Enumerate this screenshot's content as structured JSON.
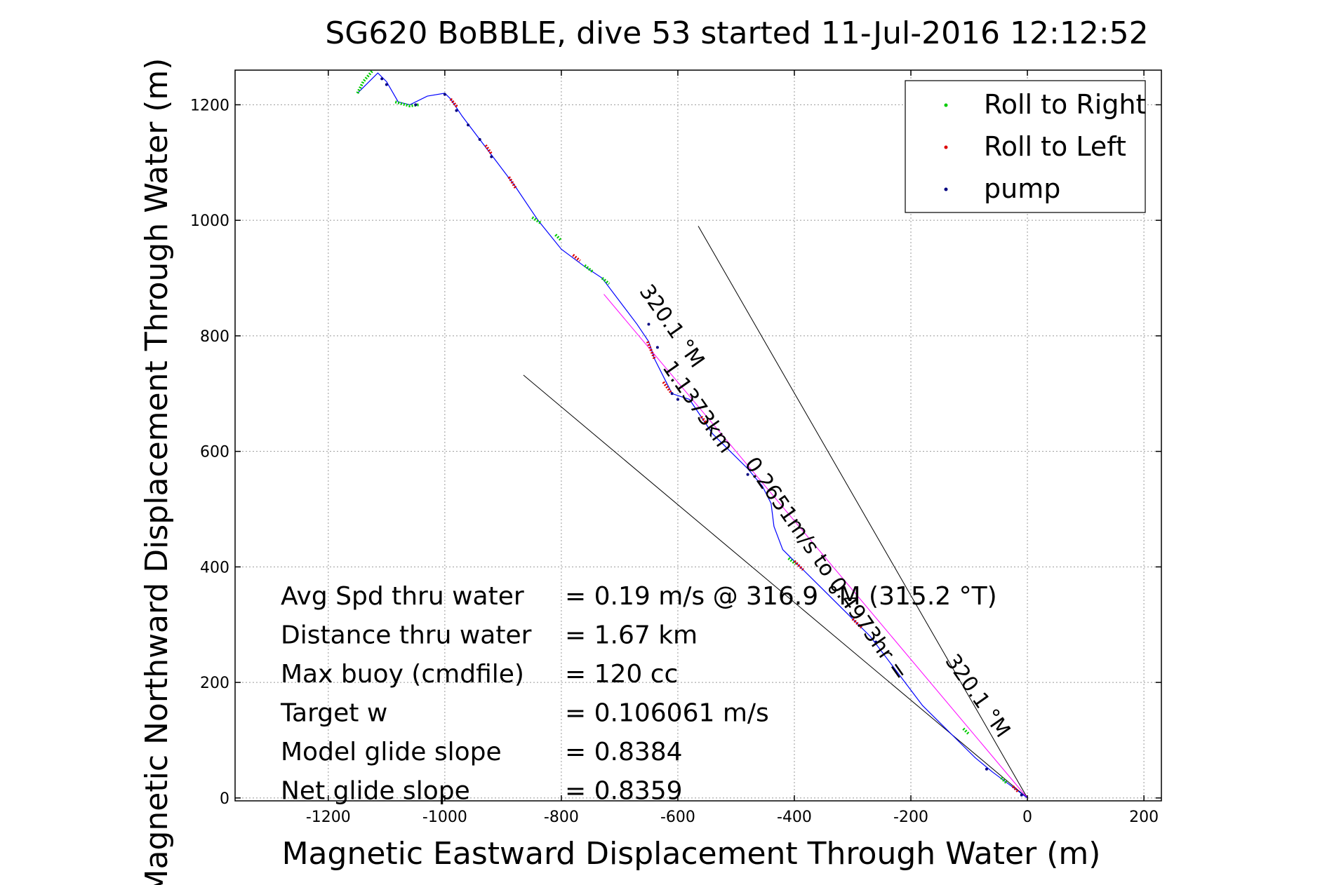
{
  "chart_data": {
    "type": "line",
    "title": "SG620 BoBBLE, dive 53 started 11-Jul-2016 12:12:52",
    "xlabel": "Magnetic Eastward Displacement Through Water (m)",
    "ylabel": "Magnetic Northward Displacement Through Water (m)",
    "xlim": [
      -1360,
      230
    ],
    "ylim": [
      -5,
      1260
    ],
    "xticks": [
      -1200,
      -1000,
      -800,
      -600,
      -400,
      -200,
      0,
      200
    ],
    "yticks": [
      0,
      200,
      400,
      600,
      800,
      1000,
      1200
    ],
    "grid": true,
    "legend_position": "top-right",
    "legend": [
      {
        "name": "Roll to Right",
        "color": "#00cc00"
      },
      {
        "name": "Roll to Left",
        "color": "#dd0000"
      },
      {
        "name": "pump",
        "color": "#000080"
      }
    ],
    "track": {
      "color": "#0000ff",
      "points": [
        [
          0,
          0
        ],
        [
          -20,
          15
        ],
        [
          -40,
          30
        ],
        [
          -60,
          45
        ],
        [
          -90,
          70
        ],
        [
          -120,
          100
        ],
        [
          -150,
          130
        ],
        [
          -180,
          160
        ],
        [
          -210,
          200
        ],
        [
          -240,
          240
        ],
        [
          -270,
          280
        ],
        [
          -300,
          310
        ],
        [
          -330,
          340
        ],
        [
          -360,
          370
        ],
        [
          -390,
          400
        ],
        [
          -420,
          430
        ],
        [
          -435,
          470
        ],
        [
          -440,
          510
        ],
        [
          -455,
          540
        ],
        [
          -480,
          570
        ],
        [
          -510,
          600
        ],
        [
          -540,
          630
        ],
        [
          -560,
          660
        ],
        [
          -580,
          690
        ],
        [
          -610,
          700
        ],
        [
          -620,
          720
        ],
        [
          -640,
          760
        ],
        [
          -650,
          790
        ],
        [
          -670,
          820
        ],
        [
          -700,
          860
        ],
        [
          -730,
          900
        ],
        [
          -760,
          920
        ],
        [
          -800,
          950
        ],
        [
          -840,
          1000
        ],
        [
          -880,
          1060
        ],
        [
          -910,
          1100
        ],
        [
          -940,
          1140
        ],
        [
          -970,
          1180
        ],
        [
          -990,
          1210
        ],
        [
          -1000,
          1220
        ],
        [
          -1030,
          1215
        ],
        [
          -1060,
          1200
        ],
        [
          -1080,
          1205
        ],
        [
          -1100,
          1240
        ],
        [
          -1115,
          1255
        ],
        [
          -1130,
          1240
        ],
        [
          -1150,
          1220
        ]
      ]
    },
    "roll_right_segments": [
      [
        [
          -1150,
          1220
        ],
        [
          -1140,
          1240
        ],
        [
          -1125,
          1258
        ]
      ],
      [
        [
          -1085,
          1205
        ],
        [
          -1060,
          1198
        ],
        [
          -1045,
          1200
        ]
      ],
      [
        [
          -850,
          1005
        ],
        [
          -835,
          995
        ]
      ],
      [
        [
          -810,
          975
        ],
        [
          -800,
          965
        ]
      ],
      [
        [
          -760,
          922
        ],
        [
          -745,
          910
        ]
      ],
      [
        [
          -730,
          900
        ],
        [
          -718,
          890
        ]
      ],
      [
        [
          -410,
          415
        ],
        [
          -398,
          405
        ]
      ],
      [
        [
          -110,
          120
        ],
        [
          -100,
          110
        ]
      ],
      [
        [
          -45,
          35
        ],
        [
          -35,
          25
        ]
      ]
    ],
    "roll_left_segments": [
      [
        [
          -990,
          1210
        ],
        [
          -978,
          1195
        ]
      ],
      [
        [
          -930,
          1130
        ],
        [
          -920,
          1115
        ]
      ],
      [
        [
          -890,
          1075
        ],
        [
          -878,
          1055
        ]
      ],
      [
        [
          -780,
          940
        ],
        [
          -768,
          930
        ]
      ],
      [
        [
          -652,
          790
        ],
        [
          -640,
          760
        ]
      ],
      [
        [
          -625,
          720
        ],
        [
          -612,
          702
        ]
      ],
      [
        [
          -560,
          660
        ],
        [
          -550,
          648
        ]
      ],
      [
        [
          -400,
          410
        ],
        [
          -385,
          395
        ]
      ],
      [
        [
          -300,
          310
        ],
        [
          -285,
          295
        ]
      ],
      [
        [
          -25,
          20
        ],
        [
          -15,
          10
        ]
      ]
    ],
    "pump_points": [
      [
        -1108,
        1245
      ],
      [
        -1100,
        1235
      ],
      [
        -1050,
        1200
      ],
      [
        -1000,
        1218
      ],
      [
        -980,
        1190
      ],
      [
        -960,
        1165
      ],
      [
        -940,
        1140
      ],
      [
        -920,
        1110
      ],
      [
        -650,
        820
      ],
      [
        -635,
        780
      ],
      [
        -610,
        700
      ],
      [
        -600,
        690
      ],
      [
        -480,
        560
      ],
      [
        -260,
        270
      ],
      [
        -70,
        50
      ],
      [
        -10,
        5
      ]
    ],
    "mean_line": {
      "color": "#ff00ff",
      "from": [
        0,
        0
      ],
      "to": [
        -727,
        872
      ]
    },
    "cone_lines": [
      {
        "from": [
          0,
          0
        ],
        "to": [
          -565,
          990
        ],
        "color": "#000000"
      },
      {
        "from": [
          0,
          0
        ],
        "to": [
          -865,
          732
        ],
        "color": "#000000"
      }
    ],
    "annotations": [
      {
        "text": "320.1 °M",
        "at": [
          -620,
          810
        ],
        "rotation": 55
      },
      {
        "text": "1.1373km",
        "at": [
          -575,
          670
        ],
        "rotation": 55
      },
      {
        "text": "0.2651m/s to 0.4973hr =",
        "at": [
          -355,
          390
        ],
        "rotation": 55
      },
      {
        "text": "320.1 °M",
        "at": [
          -95,
          170
        ],
        "rotation": 55
      }
    ],
    "stats": [
      {
        "label": "Avg Spd thru water",
        "value": "=  0.19 m/s @ 316.9 °M (315.2 °T)"
      },
      {
        "label": "Distance thru water",
        "value": "=  1.67 km"
      },
      {
        "label": "Max buoy (cmdfile)",
        "value": "= 120 cc"
      },
      {
        "label": "Target w",
        "value": "= 0.106061 m/s"
      },
      {
        "label": "Model glide slope",
        "value": "= 0.8384"
      },
      {
        "label": "Net glide slope",
        "value": "= 0.8359"
      }
    ]
  }
}
